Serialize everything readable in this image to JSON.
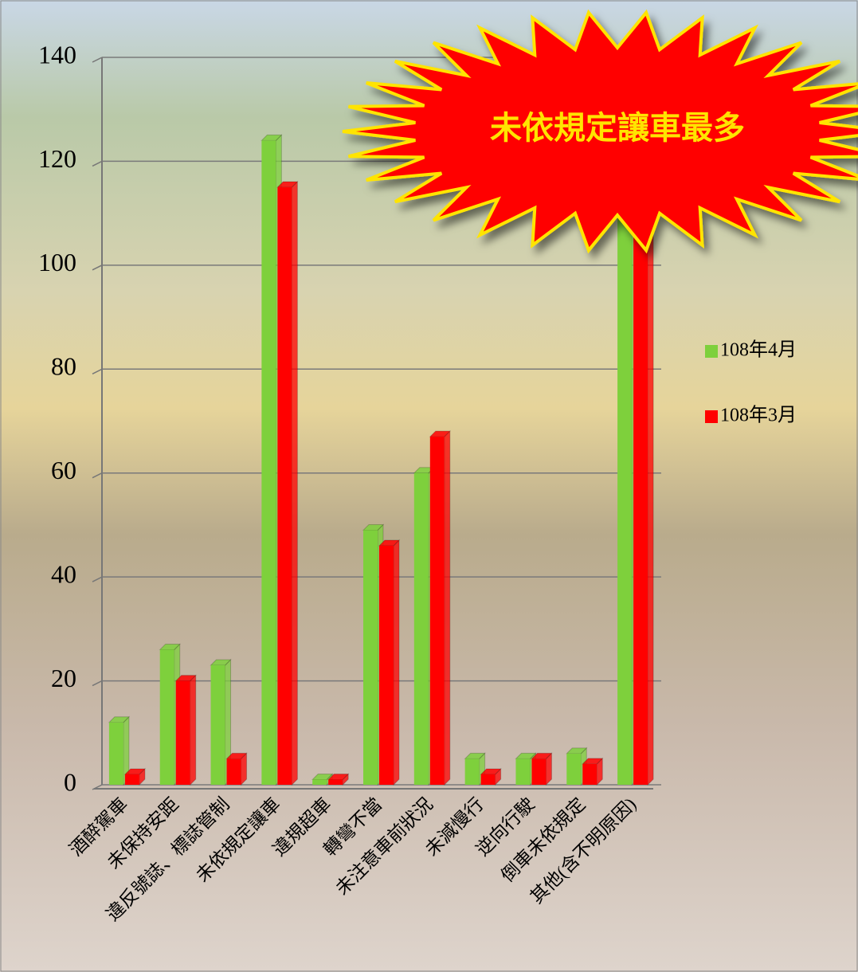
{
  "chart_data": {
    "type": "bar3d",
    "annotation": "未依規定讓車最多",
    "categories": [
      "酒醉駕車",
      "未保持安距",
      "違反號誌、標誌管制",
      "未依規定讓車",
      "違規超車",
      "轉彎不當",
      "未注意車前狀況",
      "未減慢行",
      "逆向行駛",
      "倒車未依規定",
      "其他(含不明原因)"
    ],
    "series": [
      {
        "name": "108年4月",
        "color": "#7ed03c",
        "values": [
          12,
          26,
          23,
          124,
          1,
          49,
          60,
          5,
          5,
          6,
          112
        ]
      },
      {
        "name": "108年3月",
        "color": "#ff0000",
        "values": [
          2,
          20,
          5,
          115,
          1,
          46,
          67,
          2,
          5,
          4,
          110
        ]
      }
    ],
    "ylim": [
      0,
      140
    ],
    "yticks": [
      0,
      20,
      40,
      60,
      80,
      100,
      120,
      140
    ],
    "grid": true,
    "legend": "right"
  }
}
